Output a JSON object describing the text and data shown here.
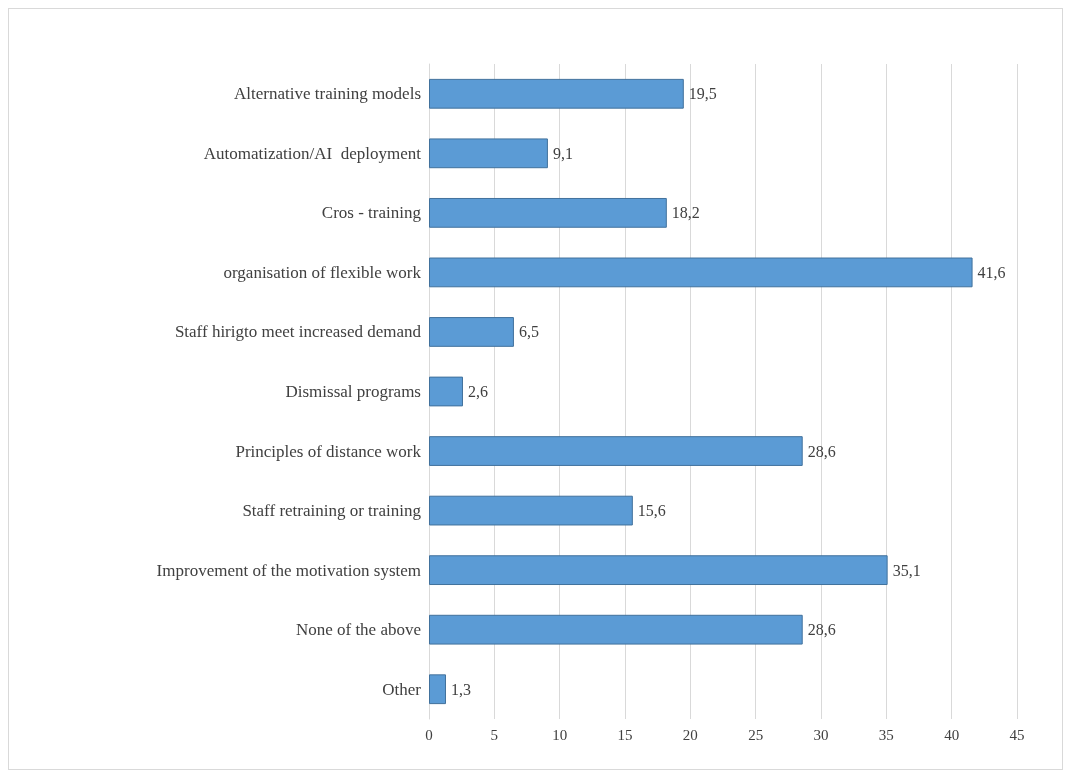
{
  "chart_data": {
    "type": "bar",
    "orientation": "horizontal",
    "categories": [
      "Alternative training models",
      "Automatization/AI  deployment",
      "Cros - training",
      "organisation of flexible work",
      "Staff hirigto meet increased demand",
      "Dismissal programs",
      "Principles of distance work",
      "Staff retraining or training",
      "Improvement of the motivation system",
      "None of the above",
      "Other"
    ],
    "values": [
      19.5,
      9.1,
      18.2,
      41.6,
      6.5,
      2.6,
      28.6,
      15.6,
      35.1,
      28.6,
      1.3
    ],
    "value_labels": [
      "19,5",
      "9,1",
      "18,2",
      "41,6",
      "6,5",
      "2,6",
      "28,6",
      "15,6",
      "35,1",
      "28,6",
      "1,3"
    ],
    "color": "#5b9bd5",
    "xlim": [
      0,
      45
    ],
    "xticks": [
      0,
      5,
      10,
      15,
      20,
      25,
      30,
      35,
      40,
      45
    ],
    "grid": "x"
  }
}
